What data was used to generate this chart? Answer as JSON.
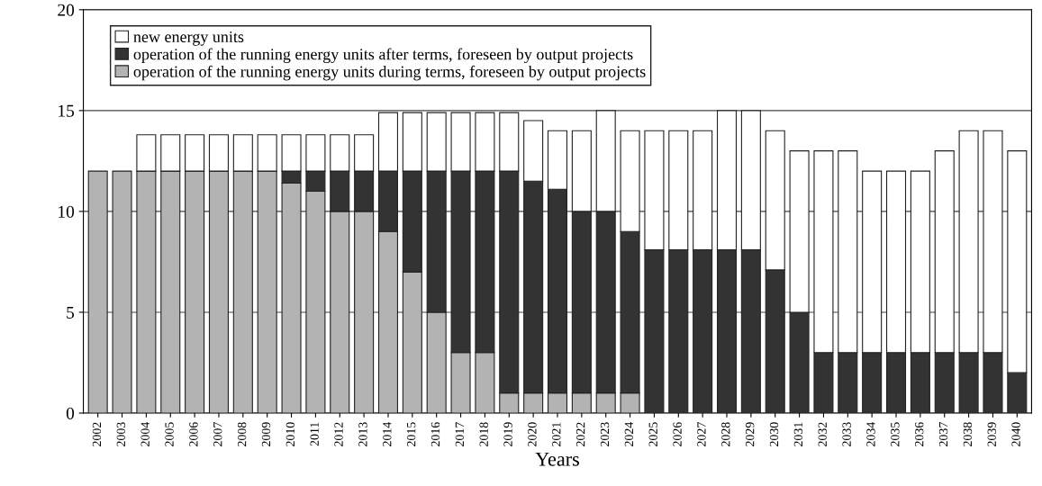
{
  "chart_data": {
    "type": "bar",
    "stacked": true,
    "xlabel": "Years",
    "categories": [
      "2002",
      "2003",
      "2004",
      "2005",
      "2006",
      "2007",
      "2008",
      "2009",
      "2010",
      "2011",
      "2012",
      "2013",
      "2014",
      "2015",
      "2016",
      "2017",
      "2018",
      "2019",
      "2020",
      "2021",
      "2022",
      "2023",
      "2024",
      "2025",
      "2026",
      "2027",
      "2028",
      "2029",
      "2030",
      "2031",
      "2032",
      "2033",
      "2034",
      "2035",
      "2036",
      "2037",
      "2038",
      "2039",
      "2040"
    ],
    "series": [
      {
        "name": "operation of the running energy units during terms, foreseen by output projects",
        "color": "#b3b3b3",
        "values": [
          12,
          12,
          12,
          12,
          12,
          12,
          12,
          12,
          11.4,
          11,
          10,
          10,
          9,
          7,
          5,
          3,
          3,
          1,
          1,
          1,
          1,
          1,
          1,
          0,
          0,
          0,
          0,
          0,
          0,
          0,
          0,
          0,
          0,
          0,
          0,
          0,
          0,
          0,
          0
        ]
      },
      {
        "name": "operation of the running energy units after terms, foreseen by output projects",
        "color": "#333333",
        "values": [
          0,
          0,
          0,
          0,
          0,
          0,
          0,
          0,
          0.6,
          1,
          2,
          2,
          3,
          5,
          7,
          9,
          9,
          11,
          10.5,
          10.1,
          9,
          9,
          8,
          8.1,
          8.1,
          8.1,
          8.1,
          8.1,
          7.1,
          5,
          3,
          3,
          3,
          3,
          3,
          3,
          3,
          3,
          2
        ]
      },
      {
        "name": "new energy units",
        "color": "#ffffff",
        "values": [
          0,
          0,
          1.8,
          1.8,
          1.8,
          1.8,
          1.8,
          1.8,
          1.8,
          1.8,
          1.8,
          1.8,
          2.9,
          2.9,
          2.9,
          2.9,
          2.9,
          2.9,
          3,
          2.9,
          4,
          5,
          5,
          5.9,
          5.9,
          5.9,
          6.9,
          6.9,
          6.9,
          8,
          10,
          10,
          9,
          9,
          9,
          10,
          11,
          11,
          11
        ]
      }
    ],
    "ylim": [
      0,
      20
    ],
    "yticks": [
      0,
      5,
      10,
      15,
      20
    ],
    "grid": "y",
    "legend": "top left"
  }
}
